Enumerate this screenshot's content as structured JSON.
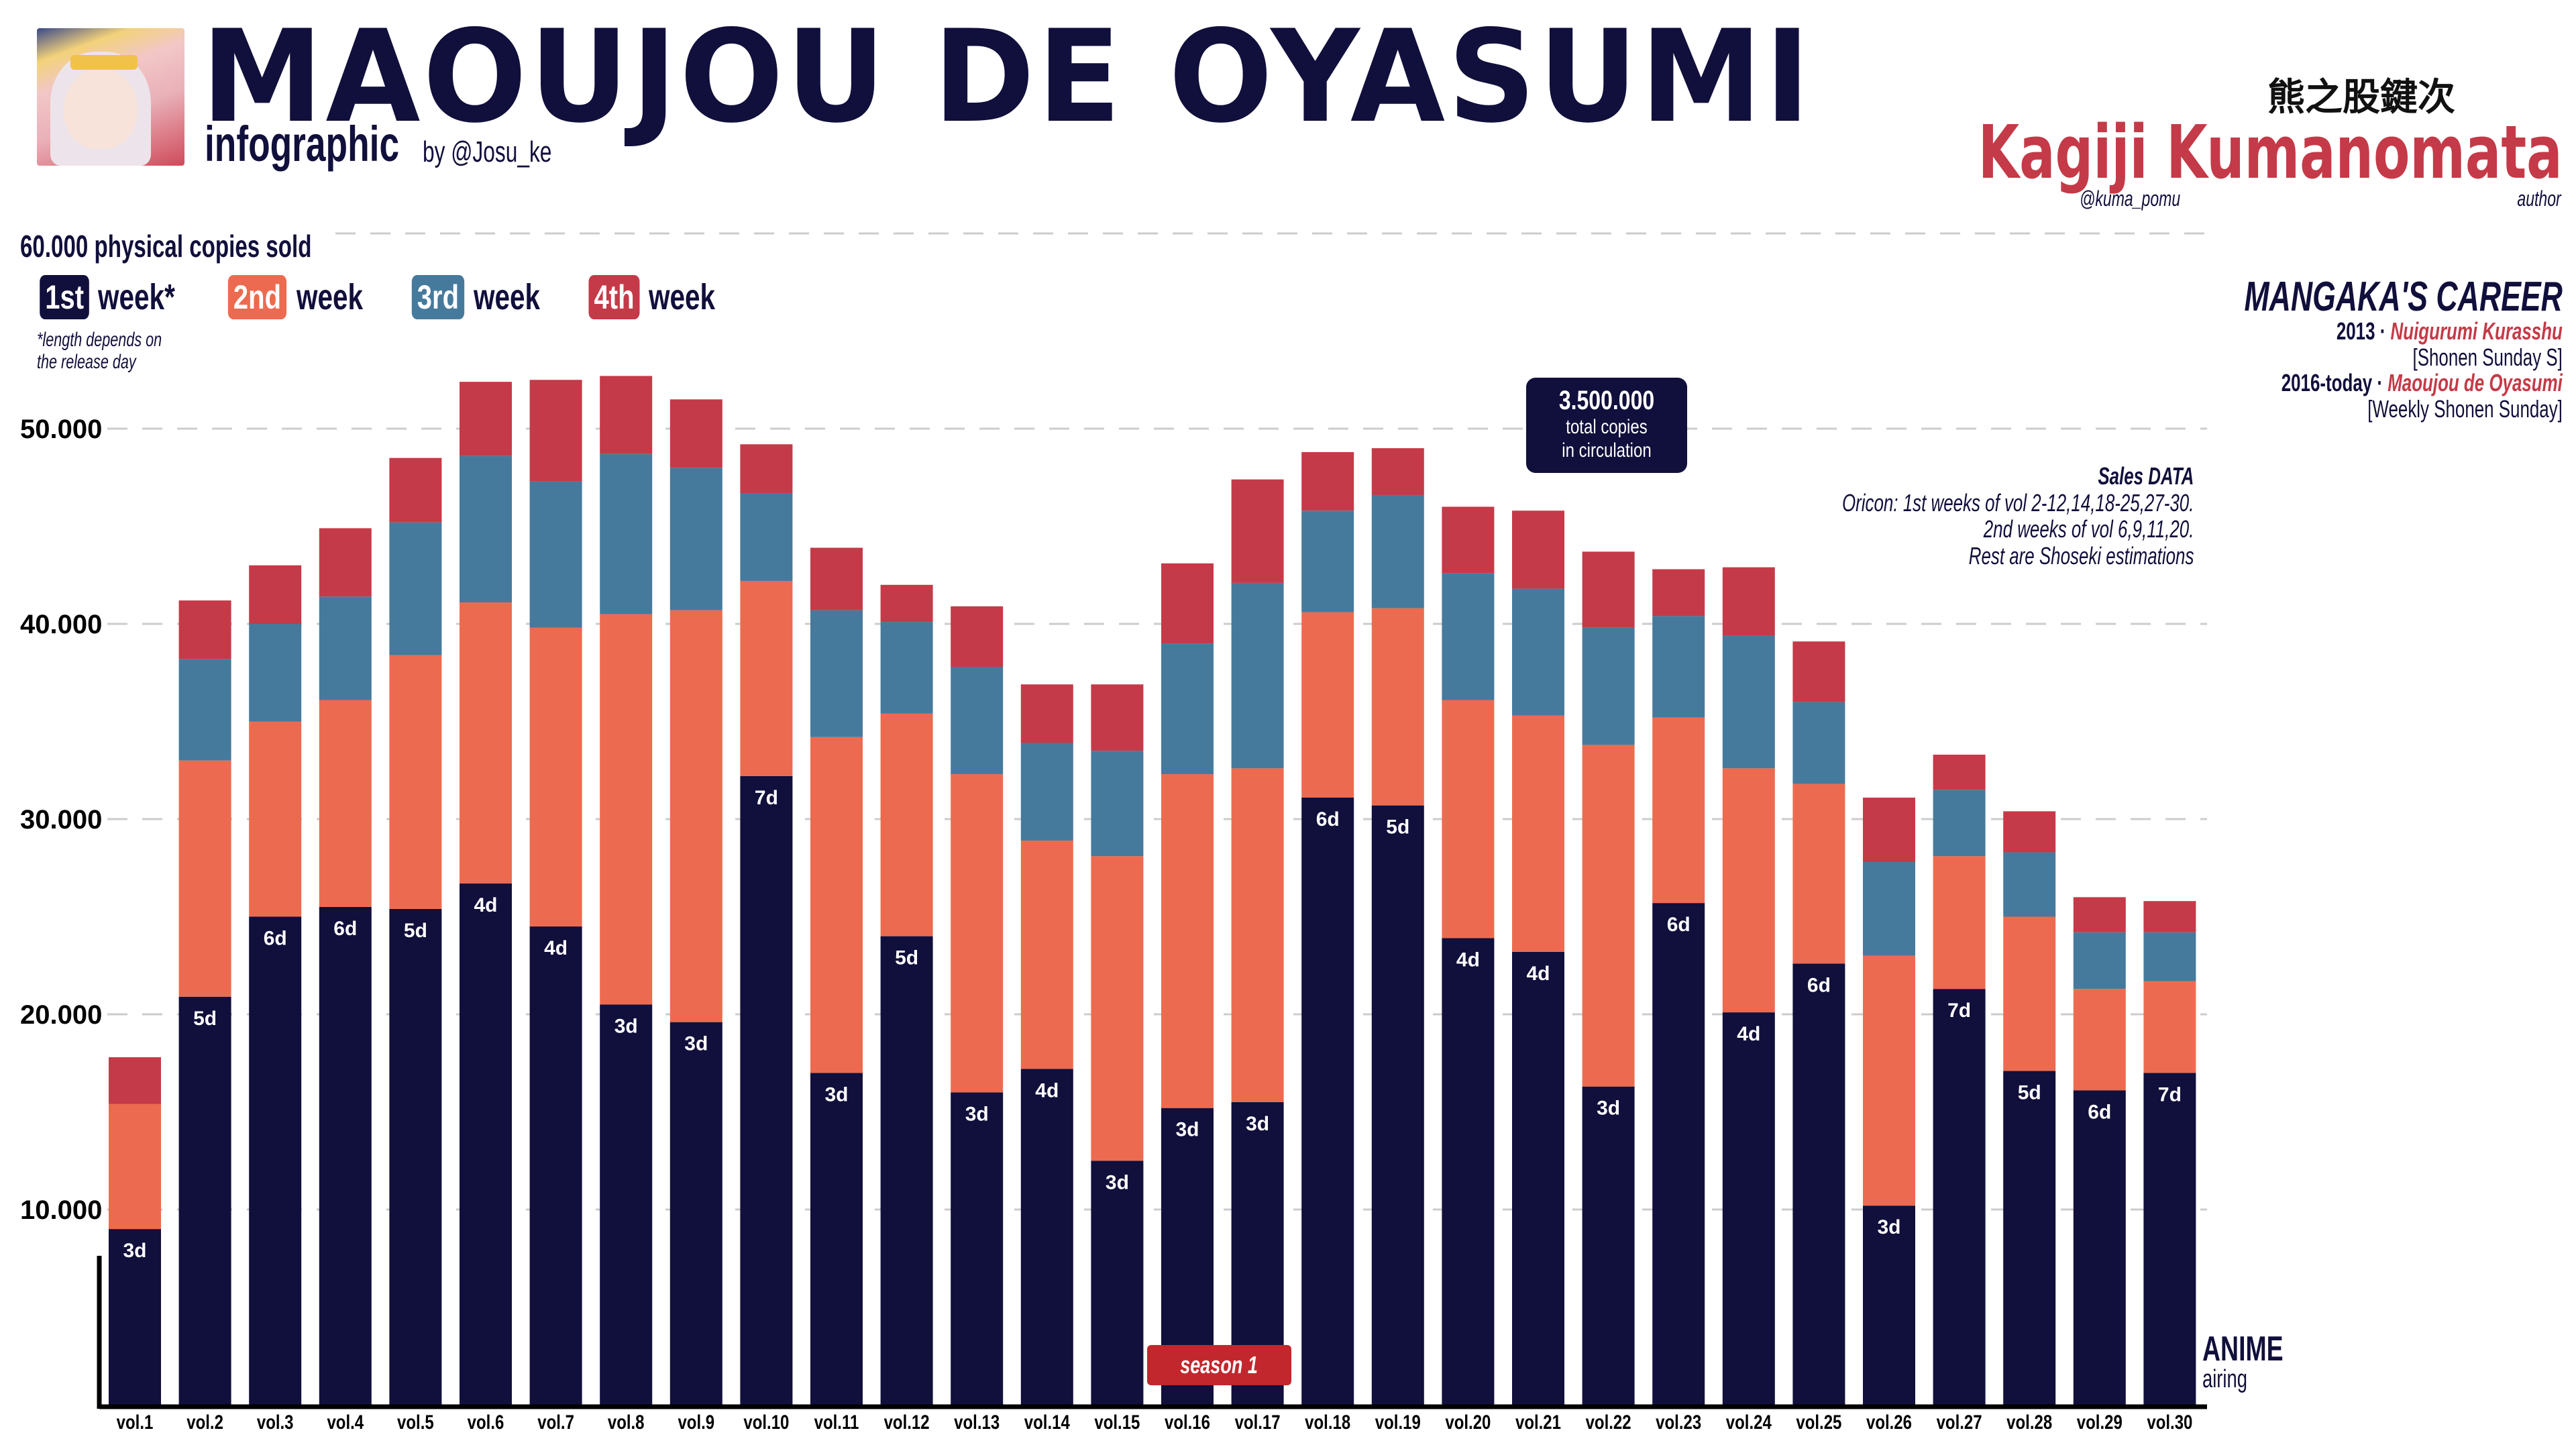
{
  "header": {
    "title": "MAOUJOU DE OYASUMI",
    "subtitle": "infographic",
    "byline": "by @Josu_ke",
    "cover_image": "manga-cover-thumbnail"
  },
  "author": {
    "name_jp": "熊之股鍵次",
    "name": "Kagiji Kumanomata",
    "handle": "@kuma_pomu",
    "role": "author"
  },
  "career": {
    "heading": "MANGAKA'S CAREER",
    "entries": [
      {
        "year": "2013 ·",
        "work": "Nuigurumi Kurasshu",
        "magazine": "[Shonen Sunday S]"
      },
      {
        "year": "2016-today ·",
        "work": "Maoujou de Oyasumi",
        "magazine": "[Weekly Shonen Sunday]"
      }
    ]
  },
  "sales_note": {
    "heading": "Sales DATA",
    "lines": [
      "Oricon: 1st weeks of vol 2-12,14,18-25,27-30.",
      "2nd weeks of vol 6,9,11,20.",
      "Rest are Shoseki estimations"
    ]
  },
  "total_box": {
    "number": "3.500.000",
    "line1": "total copies",
    "line2": "in circulation"
  },
  "legend": {
    "items": [
      {
        "badge": "1st",
        "label": "week*"
      },
      {
        "badge": "2nd",
        "label": "week"
      },
      {
        "badge": "3rd",
        "label": "week"
      },
      {
        "badge": "4th",
        "label": "week"
      }
    ],
    "footnote_line1": "*length depends on",
    "footnote_line2": "the release day"
  },
  "annotations": {
    "season_label": "season 1",
    "anime_title": "ANIME",
    "anime_sub": "airing"
  },
  "colors": {
    "week1": "#110f3b",
    "week2": "#ec6b50",
    "week3": "#467a9c",
    "week4": "#c53a48",
    "accent": "#c53a48",
    "season": "#c1272d",
    "grid": "#cccccc"
  },
  "chart_data": {
    "type": "bar",
    "stacked": true,
    "title": "MAOUJOU DE OYASUMI",
    "ylabel": "physical copies sold",
    "top_label": "60.000 physical copies sold",
    "ylim": [
      0,
      60000
    ],
    "yticks": [
      10000,
      20000,
      30000,
      40000,
      50000,
      60000
    ],
    "ytick_labels": [
      "10.000",
      "20.000",
      "30.000",
      "40.000",
      "50.000",
      "60.000"
    ],
    "grid": true,
    "legend_position": "top-left",
    "categories": [
      "vol.1",
      "vol.2",
      "vol.3",
      "vol.4",
      "vol.5",
      "vol.6",
      "vol.7",
      "vol.8",
      "vol.9",
      "vol.10",
      "vol.11",
      "vol.12",
      "vol.13",
      "vol.14",
      "vol.15",
      "vol.16",
      "vol.17",
      "vol.18",
      "vol.19",
      "vol.20",
      "vol.21",
      "vol.22",
      "vol.23",
      "vol.24",
      "vol.25",
      "vol.26",
      "vol.27",
      "vol.28",
      "vol.29",
      "vol.30"
    ],
    "first_week_days": [
      "3d",
      "5d",
      "6d",
      "6d",
      "5d",
      "4d",
      "4d",
      "3d",
      "3d",
      "7d",
      "3d",
      "5d",
      "3d",
      "4d",
      "3d",
      "3d",
      "3d",
      "6d",
      "5d",
      "4d",
      "4d",
      "3d",
      "6d",
      "4d",
      "6d",
      "3d",
      "7d",
      "5d",
      "6d",
      "7d"
    ],
    "series": [
      {
        "name": "1st week",
        "values": [
          9000,
          20900,
          25000,
          25500,
          25400,
          26700,
          24500,
          20500,
          19600,
          32200,
          17000,
          24000,
          16000,
          17200,
          12500,
          15200,
          15500,
          31100,
          30700,
          23900,
          23200,
          16300,
          25700,
          20100,
          22600,
          10200,
          21300,
          17100,
          16100,
          17000
        ]
      },
      {
        "name": "2nd week",
        "values": [
          6400,
          12100,
          10000,
          10600,
          13000,
          14400,
          15300,
          20000,
          21100,
          10000,
          17200,
          11400,
          16300,
          11700,
          15600,
          17100,
          17100,
          9500,
          10100,
          12200,
          12100,
          17500,
          9500,
          12500,
          9200,
          12800,
          6800,
          7900,
          5200,
          4700
        ]
      },
      {
        "name": "3rd week",
        "values": [
          0,
          5200,
          5000,
          5300,
          6800,
          7500,
          7500,
          8200,
          7300,
          4500,
          6500,
          4700,
          5500,
          5000,
          5400,
          6700,
          9500,
          5200,
          5800,
          6500,
          6500,
          6000,
          5200,
          6800,
          4200,
          4800,
          3400,
          3300,
          2900,
          2500
        ]
      },
      {
        "name": "4th week",
        "values": [
          2400,
          3000,
          3000,
          3500,
          3300,
          3800,
          5200,
          4000,
          3500,
          2500,
          3200,
          1900,
          3100,
          3000,
          3400,
          4100,
          5300,
          3000,
          2400,
          3400,
          4000,
          3900,
          2400,
          3500,
          3100,
          3300,
          1800,
          2100,
          1800,
          1600
        ]
      }
    ],
    "annotations": [
      {
        "text": "season 1",
        "at": "vol.16-vol.17"
      },
      {
        "text": "ANIME airing",
        "at": "right of vol.30"
      },
      {
        "text": "3.500.000 total copies in circulation",
        "at": "above vol.21"
      }
    ]
  }
}
